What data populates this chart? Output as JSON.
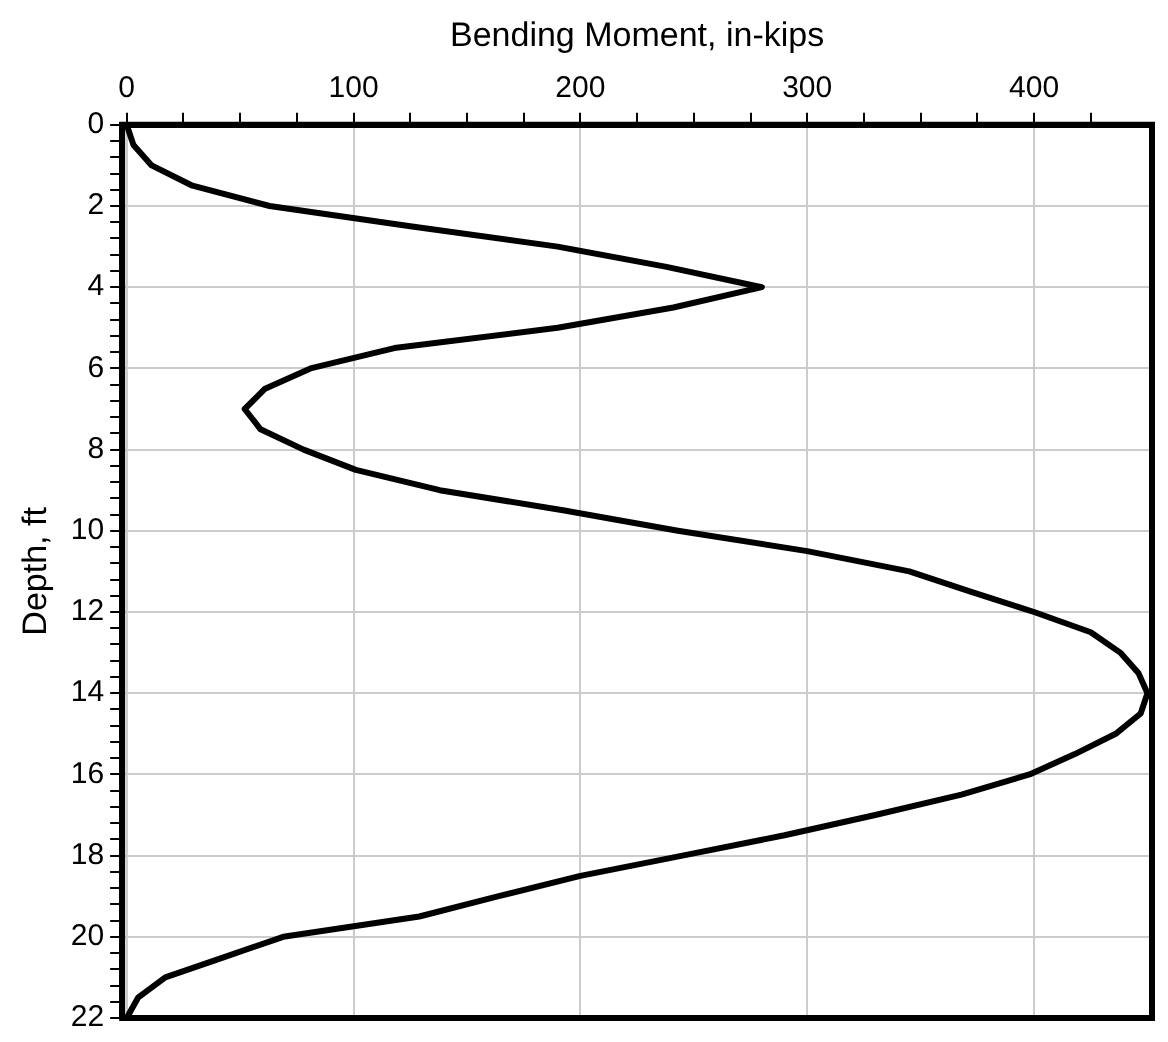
{
  "chart_data": {
    "type": "line",
    "xlabel": "Bending Moment, in-kips",
    "ylabel": "Depth, ft",
    "xlim": [
      -2,
      452
    ],
    "ylim": [
      22,
      0
    ],
    "xticks": [
      0,
      {
        "value": 25,
        "label": null
      },
      {
        "value": 50,
        "label": null
      },
      {
        "value": 75,
        "label": null
      },
      100,
      {
        "value": 125,
        "label": null
      },
      {
        "value": 150,
        "label": null
      },
      {
        "value": 175,
        "label": null
      },
      200,
      {
        "value": 225,
        "label": null
      },
      {
        "value": 250,
        "label": null
      },
      {
        "value": 275,
        "label": null
      },
      300,
      {
        "value": 325,
        "label": null
      },
      {
        "value": 350,
        "label": null
      },
      {
        "value": 375,
        "label": null
      },
      400,
      {
        "value": 425,
        "label": null
      }
    ],
    "yticks": [
      0,
      {
        "value": 0.4,
        "label": null
      },
      {
        "value": 0.8,
        "label": null
      },
      {
        "value": 1.2,
        "label": null
      },
      {
        "value": 1.6,
        "label": null
      },
      2,
      {
        "value": 2.4,
        "label": null
      },
      {
        "value": 2.8,
        "label": null
      },
      {
        "value": 3.2,
        "label": null
      },
      {
        "value": 3.6,
        "label": null
      },
      4,
      {
        "value": 4.4,
        "label": null
      },
      {
        "value": 4.8,
        "label": null
      },
      {
        "value": 5.2,
        "label": null
      },
      {
        "value": 5.6,
        "label": null
      },
      6,
      {
        "value": 6.4,
        "label": null
      },
      {
        "value": 6.8,
        "label": null
      },
      {
        "value": 7.2,
        "label": null
      },
      {
        "value": 7.6,
        "label": null
      },
      8,
      {
        "value": 8.4,
        "label": null
      },
      {
        "value": 8.8,
        "label": null
      },
      {
        "value": 9.2,
        "label": null
      },
      {
        "value": 9.6,
        "label": null
      },
      10,
      {
        "value": 10.4,
        "label": null
      },
      {
        "value": 10.8,
        "label": null
      },
      {
        "value": 11.2,
        "label": null
      },
      {
        "value": 11.6,
        "label": null
      },
      12,
      {
        "value": 12.4,
        "label": null
      },
      {
        "value": 12.8,
        "label": null
      },
      {
        "value": 13.2,
        "label": null
      },
      {
        "value": 13.6,
        "label": null
      },
      14,
      {
        "value": 14.4,
        "label": null
      },
      {
        "value": 14.8,
        "label": null
      },
      {
        "value": 15.2,
        "label": null
      },
      {
        "value": 15.6,
        "label": null
      },
      16,
      {
        "value": 16.4,
        "label": null
      },
      {
        "value": 16.8,
        "label": null
      },
      {
        "value": 17.2,
        "label": null
      },
      {
        "value": 17.6,
        "label": null
      },
      18,
      {
        "value": 18.4,
        "label": null
      },
      {
        "value": 18.8,
        "label": null
      },
      {
        "value": 19.2,
        "label": null
      },
      {
        "value": 19.6,
        "label": null
      },
      20,
      {
        "value": 20.4,
        "label": null
      },
      {
        "value": 20.8,
        "label": null
      },
      {
        "value": 21.2,
        "label": null
      },
      {
        "value": 21.6,
        "label": null
      },
      22
    ],
    "grid": true,
    "legend": false,
    "marker": "none",
    "line_style": "solid",
    "series": [
      {
        "color": "#000000",
        "x": [
          0,
          3,
          11,
          29,
          63,
          125,
          190,
          238,
          280,
          241,
          190,
          118,
          81,
          61,
          52,
          59,
          78,
          101,
          138,
          193,
          243,
          300,
          345,
          372,
          400,
          425,
          438,
          446,
          450,
          447,
          436,
          418,
          398,
          368,
          330,
          290,
          245,
          200,
          164,
          129,
          69,
          43,
          17,
          5,
          0
        ],
        "values": [
          0,
          0.5,
          1,
          1.5,
          2,
          2.5,
          3,
          3.5,
          4,
          4.5,
          5,
          5.5,
          6,
          6.5,
          7,
          7.5,
          8,
          8.5,
          9,
          9.5,
          10,
          10.5,
          11,
          11.5,
          12,
          12.5,
          13,
          13.5,
          14,
          14.5,
          15,
          15.5,
          16,
          16.5,
          17,
          17.5,
          18,
          18.5,
          19,
          19.5,
          20,
          20.5,
          21,
          21.5,
          22
        ]
      }
    ]
  }
}
